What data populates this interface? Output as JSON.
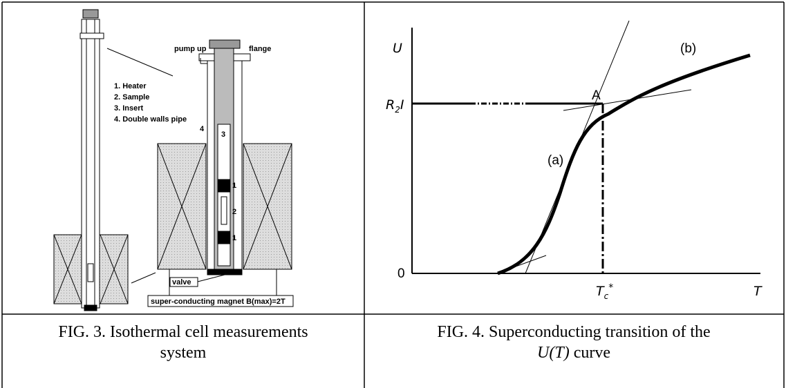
{
  "figure3": {
    "labels": {
      "pump": "pump up",
      "flange": "flange",
      "legend": [
        "1. Heater",
        "2. Sample",
        "3. Insert",
        "4. Double walls pipe"
      ],
      "n4": "4",
      "n3": "3",
      "n1a": "1",
      "n2": "2",
      "n1b": "1",
      "valve": "valve",
      "magnet": "super-conducting magnet B(max)=2T"
    },
    "caption": [
      "FIG. 3. Isothermal cell measurements",
      "system"
    ]
  },
  "figure4": {
    "labels": {
      "u": "U",
      "r2i": {
        "base": "R",
        "sub": "2",
        "tail": "I"
      },
      "b": "(b)",
      "a_point": "A",
      "a": "(a)",
      "zero": "0",
      "tc": {
        "base": "T",
        "sub": "c",
        "sup": "*"
      },
      "t": "T"
    },
    "caption": {
      "line1": "FIG. 4. Superconducting transition of the",
      "italic": "U(T)",
      "tail": " curve"
    }
  }
}
